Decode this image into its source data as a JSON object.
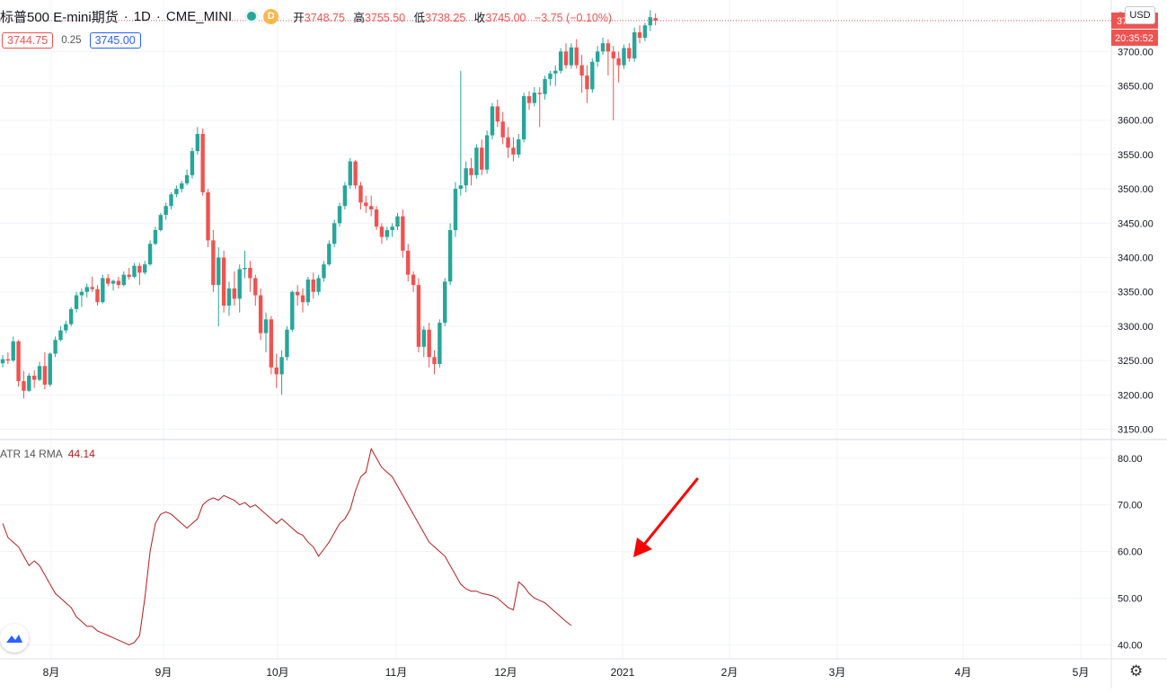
{
  "header": {
    "symbol": "标普500 E-mini期货",
    "separator": "·",
    "interval": "1D",
    "exchange": "CME_MINI",
    "d_badge": "D",
    "open_label": "开",
    "open": "3748.75",
    "high_label": "高",
    "high": "3755.50",
    "low_label": "低",
    "low": "3738.25",
    "close_label": "收",
    "close": "3745.00",
    "change": "−3.75 (−0.10%)",
    "status_color": "#26a69a"
  },
  "quote": {
    "bid": "3744.75",
    "spread": "0.25",
    "ask": "3745.00"
  },
  "axis": {
    "currency": "USD",
    "last_price_label": "3745.00",
    "countdown": "20:35:52",
    "top_partial_label": "3"
  },
  "indicator": {
    "name": "ATR 14 RMA",
    "value": "44.14",
    "line_color": "#b71c1c"
  },
  "annotation": {
    "arrow_color": "#ff0000"
  },
  "chart_data": [
    {
      "type": "candlestick",
      "title": "标普500 E-mini期货",
      "up_color": "#26a69a",
      "down_color": "#ef5350",
      "y_ticks": [
        3150,
        3200,
        3250,
        3300,
        3350,
        3400,
        3450,
        3500,
        3550,
        3600,
        3650,
        3700
      ],
      "ylim": [
        3135,
        3775
      ],
      "last_price": 3745.0,
      "x_ticks": [
        "8月",
        "9月",
        "10月",
        "11月",
        "12月",
        "2021",
        "2月",
        "3月",
        "4月",
        "5月"
      ],
      "candles": [
        [
          3246,
          3258,
          3240,
          3252
        ],
        [
          3252,
          3262,
          3245,
          3250
        ],
        [
          3250,
          3285,
          3248,
          3278
        ],
        [
          3278,
          3280,
          3212,
          3220
        ],
        [
          3220,
          3235,
          3195,
          3206
        ],
        [
          3206,
          3232,
          3204,
          3228
        ],
        [
          3228,
          3236,
          3210,
          3222
        ],
        [
          3222,
          3248,
          3220,
          3242
        ],
        [
          3242,
          3262,
          3208,
          3215
        ],
        [
          3215,
          3262,
          3212,
          3260
        ],
        [
          3260,
          3285,
          3255,
          3280
        ],
        [
          3280,
          3300,
          3278,
          3294
        ],
        [
          3294,
          3308,
          3290,
          3303
        ],
        [
          3303,
          3328,
          3300,
          3325
        ],
        [
          3325,
          3350,
          3320,
          3345
        ],
        [
          3345,
          3355,
          3328,
          3350
        ],
        [
          3350,
          3362,
          3342,
          3357
        ],
        [
          3357,
          3372,
          3350,
          3354
        ],
        [
          3354,
          3360,
          3330,
          3335
        ],
        [
          3335,
          3375,
          3333,
          3370
        ],
        [
          3370,
          3376,
          3358,
          3362
        ],
        [
          3362,
          3368,
          3352,
          3366
        ],
        [
          3366,
          3372,
          3355,
          3360
        ],
        [
          3360,
          3380,
          3358,
          3375
        ],
        [
          3375,
          3385,
          3368,
          3372
        ],
        [
          3372,
          3392,
          3370,
          3388
        ],
        [
          3388,
          3392,
          3360,
          3378
        ],
        [
          3378,
          3395,
          3375,
          3390
        ],
        [
          3390,
          3425,
          3388,
          3420
        ],
        [
          3420,
          3445,
          3418,
          3440
        ],
        [
          3440,
          3465,
          3438,
          3462
        ],
        [
          3462,
          3480,
          3455,
          3475
        ],
        [
          3475,
          3495,
          3470,
          3492
        ],
        [
          3492,
          3505,
          3488,
          3500
        ],
        [
          3500,
          3512,
          3495,
          3508
        ],
        [
          3508,
          3528,
          3505,
          3520
        ],
        [
          3520,
          3560,
          3515,
          3555
        ],
        [
          3555,
          3590,
          3550,
          3580
        ],
        [
          3580,
          3588,
          3490,
          3495
        ],
        [
          3495,
          3500,
          3415,
          3425
        ],
        [
          3425,
          3440,
          3350,
          3360
        ],
        [
          3360,
          3415,
          3300,
          3400
        ],
        [
          3400,
          3410,
          3320,
          3330
        ],
        [
          3330,
          3365,
          3315,
          3355
        ],
        [
          3355,
          3380,
          3330,
          3340
        ],
        [
          3340,
          3390,
          3320,
          3383
        ],
        [
          3383,
          3410,
          3370,
          3385
        ],
        [
          3385,
          3395,
          3350,
          3370
        ],
        [
          3370,
          3375,
          3330,
          3345
        ],
        [
          3345,
          3355,
          3280,
          3290
        ],
        [
          3290,
          3320,
          3262,
          3310
        ],
        [
          3310,
          3315,
          3230,
          3240
        ],
        [
          3240,
          3260,
          3210,
          3230
        ],
        [
          3230,
          3265,
          3200,
          3255
        ],
        [
          3255,
          3300,
          3250,
          3295
        ],
        [
          3295,
          3352,
          3292,
          3350
        ],
        [
          3350,
          3360,
          3330,
          3345
        ],
        [
          3345,
          3355,
          3320,
          3335
        ],
        [
          3335,
          3372,
          3330,
          3368
        ],
        [
          3368,
          3378,
          3340,
          3350
        ],
        [
          3350,
          3375,
          3345,
          3370
        ],
        [
          3370,
          3395,
          3365,
          3390
        ],
        [
          3390,
          3425,
          3388,
          3420
        ],
        [
          3420,
          3455,
          3415,
          3450
        ],
        [
          3450,
          3480,
          3445,
          3475
        ],
        [
          3475,
          3510,
          3470,
          3505
        ],
        [
          3505,
          3545,
          3500,
          3540
        ],
        [
          3540,
          3542,
          3500,
          3505
        ],
        [
          3505,
          3510,
          3470,
          3480
        ],
        [
          3480,
          3490,
          3465,
          3475
        ],
        [
          3475,
          3490,
          3460,
          3470
        ],
        [
          3470,
          3475,
          3440,
          3445
        ],
        [
          3445,
          3450,
          3420,
          3430
        ],
        [
          3430,
          3445,
          3425,
          3440
        ],
        [
          3440,
          3450,
          3430,
          3445
        ],
        [
          3445,
          3465,
          3440,
          3460
        ],
        [
          3460,
          3470,
          3400,
          3410
        ],
        [
          3410,
          3420,
          3365,
          3375
        ],
        [
          3375,
          3380,
          3350,
          3360
        ],
        [
          3360,
          3370,
          3262,
          3270
        ],
        [
          3270,
          3300,
          3255,
          3295
        ],
        [
          3295,
          3305,
          3240,
          3255
        ],
        [
          3255,
          3265,
          3230,
          3245
        ],
        [
          3245,
          3310,
          3240,
          3305
        ],
        [
          3305,
          3370,
          3300,
          3365
        ],
        [
          3365,
          3450,
          3360,
          3440
        ],
        [
          3440,
          3510,
          3430,
          3500
        ],
        [
          3500,
          3672,
          3490,
          3505
        ],
        [
          3505,
          3540,
          3495,
          3530
        ],
        [
          3530,
          3545,
          3505,
          3520
        ],
        [
          3520,
          3565,
          3515,
          3560
        ],
        [
          3560,
          3572,
          3520,
          3528
        ],
        [
          3528,
          3585,
          3522,
          3578
        ],
        [
          3578,
          3625,
          3572,
          3620
        ],
        [
          3620,
          3630,
          3590,
          3598
        ],
        [
          3598,
          3612,
          3565,
          3575
        ],
        [
          3575,
          3590,
          3545,
          3560
        ],
        [
          3560,
          3575,
          3540,
          3550
        ],
        [
          3550,
          3580,
          3545,
          3572
        ],
        [
          3572,
          3640,
          3568,
          3635
        ],
        [
          3635,
          3642,
          3615,
          3625
        ],
        [
          3625,
          3648,
          3620,
          3640
        ],
        [
          3640,
          3648,
          3590,
          3638
        ],
        [
          3638,
          3665,
          3630,
          3660
        ],
        [
          3660,
          3672,
          3650,
          3668
        ],
        [
          3668,
          3680,
          3650,
          3672
        ],
        [
          3672,
          3705,
          3668,
          3700
        ],
        [
          3700,
          3712,
          3675,
          3680
        ],
        [
          3680,
          3712,
          3675,
          3706
        ],
        [
          3706,
          3718,
          3675,
          3680
        ],
        [
          3680,
          3695,
          3640,
          3665
        ],
        [
          3665,
          3680,
          3625,
          3645
        ],
        [
          3645,
          3690,
          3640,
          3685
        ],
        [
          3685,
          3708,
          3678,
          3700
        ],
        [
          3700,
          3720,
          3695,
          3712
        ],
        [
          3712,
          3718,
          3665,
          3700
        ],
        [
          3700,
          3708,
          3600,
          3690
        ],
        [
          3690,
          3700,
          3655,
          3680
        ],
        [
          3680,
          3710,
          3675,
          3705
        ],
        [
          3705,
          3712,
          3685,
          3690
        ],
        [
          3690,
          3735,
          3685,
          3728
        ],
        [
          3728,
          3738,
          3712,
          3720
        ],
        [
          3720,
          3742,
          3715,
          3738
        ],
        [
          3738,
          3760,
          3730,
          3750
        ],
        [
          3748.75,
          3755.5,
          3738.25,
          3745
        ]
      ]
    },
    {
      "type": "line",
      "title": "ATR 14 RMA",
      "y_ticks": [
        40,
        50,
        60,
        70,
        80
      ],
      "ylim": [
        37,
        84
      ],
      "values": [
        66,
        63,
        62,
        61,
        59,
        57,
        58,
        57,
        55,
        53,
        51,
        50,
        49,
        48,
        46,
        45,
        44,
        44,
        43,
        42.5,
        42,
        41.5,
        41,
        40.5,
        40,
        40.5,
        42,
        50,
        60,
        66,
        68,
        68.5,
        68,
        67,
        66,
        65,
        66,
        67,
        70,
        71,
        71.5,
        71,
        72,
        71.5,
        71,
        70,
        70.5,
        69.5,
        70,
        69,
        68,
        67,
        66,
        67,
        66,
        65,
        64,
        63.5,
        62,
        61,
        59,
        60.5,
        62,
        64,
        66,
        67,
        69,
        73,
        76,
        77,
        82,
        80,
        78,
        77,
        76,
        74,
        72,
        70,
        68,
        66,
        64,
        62,
        61,
        60,
        59,
        57,
        55,
        53,
        52,
        51.5,
        51.5,
        51,
        50.8,
        50.5,
        50,
        49,
        48,
        47.5,
        53.5,
        52.5,
        51,
        50,
        49.5,
        49,
        48,
        47,
        46,
        45,
        44.14
      ]
    }
  ]
}
